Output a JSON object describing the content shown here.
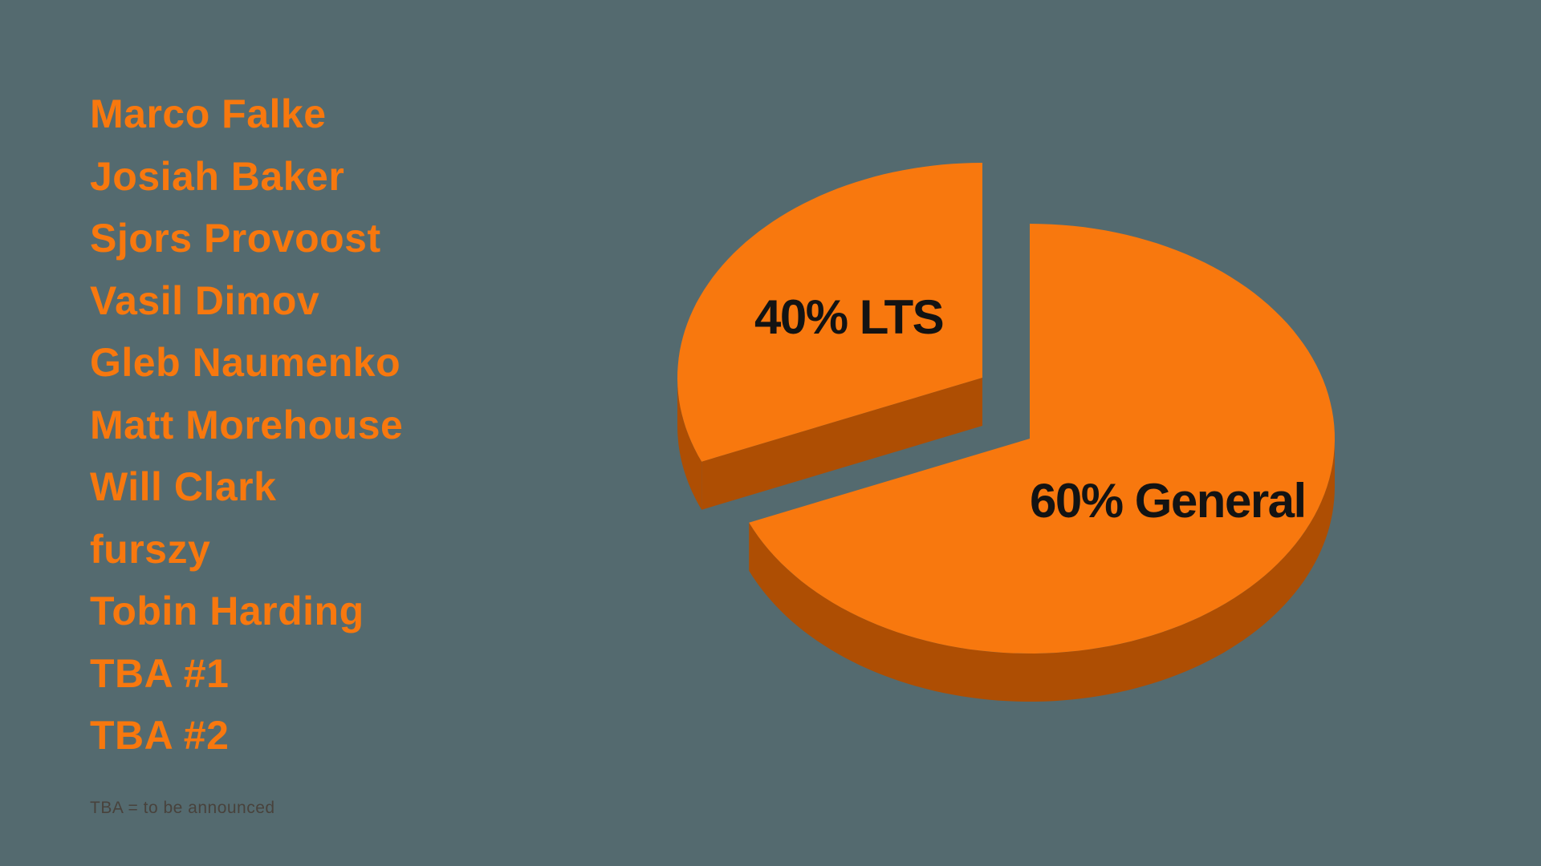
{
  "slide": {
    "contributors": [
      "Marco Falke",
      "Josiah Baker",
      "Sjors Provoost",
      "Vasil Dimov",
      "Gleb Naumenko",
      "Matt Morehouse",
      "Will Clark",
      "furszy",
      "Tobin Harding",
      "TBA #1",
      "TBA #2"
    ],
    "footnote": "TBA = to be announced"
  },
  "colors": {
    "background": "#546a6f",
    "accent_orange": "#f8780e",
    "pie_top": "#f8780e",
    "pie_side": "#ae4e03",
    "slice_label": "#131313",
    "footnote": "#48423c"
  },
  "chart_data": {
    "type": "pie",
    "style": "3d-exploded",
    "title": "",
    "legend": "none",
    "slices": [
      {
        "label": "General",
        "value_pct": 60,
        "display_label": "60% General",
        "exploded": false
      },
      {
        "label": "LTS",
        "value_pct": 40,
        "display_label": "40% LTS",
        "exploded": true
      }
    ]
  }
}
